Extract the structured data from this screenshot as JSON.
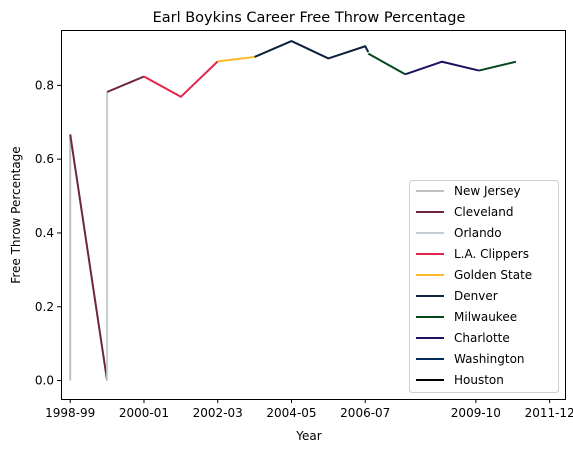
{
  "chart_data": {
    "type": "line",
    "title": "Earl Boykins Career Free Throw Percentage",
    "xlabel": "Year",
    "ylabel": "Free Throw Percentage",
    "ylim": [
      -0.05,
      0.95
    ],
    "xlim": [
      "1998-08",
      "2012-04"
    ],
    "x_ticks": [
      "1998-99",
      "2000-01",
      "2002-03",
      "2004-05",
      "2006-07",
      "2009-10",
      "2011-12"
    ],
    "y_ticks": [
      0.0,
      0.2,
      0.4,
      0.6,
      0.8
    ],
    "y_tick_labels": [
      "0.0",
      "0.2",
      "0.4",
      "0.6",
      "0.8"
    ],
    "grid": false,
    "legend_position": "lower-right",
    "series": [
      {
        "name": "New Jersey",
        "color": "#c0c0c0",
        "points": [
          [
            "1998-11",
            0.0
          ],
          [
            "1998-11",
            0.667
          ]
        ]
      },
      {
        "name": "Cleveland",
        "color": "#6f263d",
        "points": [
          [
            "1998-11",
            0.667
          ],
          [
            "1999-11",
            0.0
          ]
        ]
      },
      {
        "name": "Orlando",
        "color": "#c4ced4",
        "points": [
          [
            "1999-11",
            0.0
          ],
          [
            "1999-11",
            0.782
          ]
        ]
      },
      {
        "name": "Cleveland",
        "color": "#6f263d",
        "points": [
          [
            "1999-11",
            0.782
          ],
          [
            "2000-11",
            0.824
          ]
        ]
      },
      {
        "name": "L.A. Clippers",
        "color": "#e3254d",
        "points": [
          [
            "2000-11",
            0.824
          ],
          [
            "2001-11",
            0.769
          ],
          [
            "2002-11",
            0.865
          ]
        ]
      },
      {
        "name": "Golden State",
        "color": "#fdb927",
        "points": [
          [
            "2002-11",
            0.865
          ],
          [
            "2003-11",
            0.877
          ]
        ]
      },
      {
        "name": "Denver",
        "color": "#0e2240",
        "points": [
          [
            "2003-11",
            0.877
          ],
          [
            "2004-11",
            0.92
          ],
          [
            "2005-11",
            0.873
          ],
          [
            "2006-11",
            0.906
          ],
          [
            "2006-12",
            0.89
          ]
        ]
      },
      {
        "name": "Milwaukee",
        "color": "#00471b",
        "points": [
          [
            "2006-12",
            0.886
          ],
          [
            "2007-12",
            0.83
          ]
        ]
      },
      {
        "name": "Charlotte",
        "color": "#1d1160",
        "points": [
          [
            "2007-12",
            0.83
          ],
          [
            "2008-12",
            0.864
          ],
          [
            "2009-12",
            0.84
          ]
        ]
      },
      {
        "name": "Milwaukee",
        "color": "#00471b",
        "points": [
          [
            "2009-12",
            0.84
          ],
          [
            "2010-12",
            0.864
          ]
        ]
      }
    ],
    "legend": [
      {
        "name": "New Jersey",
        "color": "#c0c0c0"
      },
      {
        "name": "Cleveland",
        "color": "#6f263d"
      },
      {
        "name": "Orlando",
        "color": "#c4ced4"
      },
      {
        "name": "L.A. Clippers",
        "color": "#e3254d"
      },
      {
        "name": "Golden State",
        "color": "#fdb927"
      },
      {
        "name": "Denver",
        "color": "#0e2240"
      },
      {
        "name": "Milwaukee",
        "color": "#00471b"
      },
      {
        "name": "Charlotte",
        "color": "#1d1160"
      },
      {
        "name": "Washington",
        "color": "#002b5c"
      },
      {
        "name": "Houston",
        "color": "#000000"
      }
    ]
  }
}
